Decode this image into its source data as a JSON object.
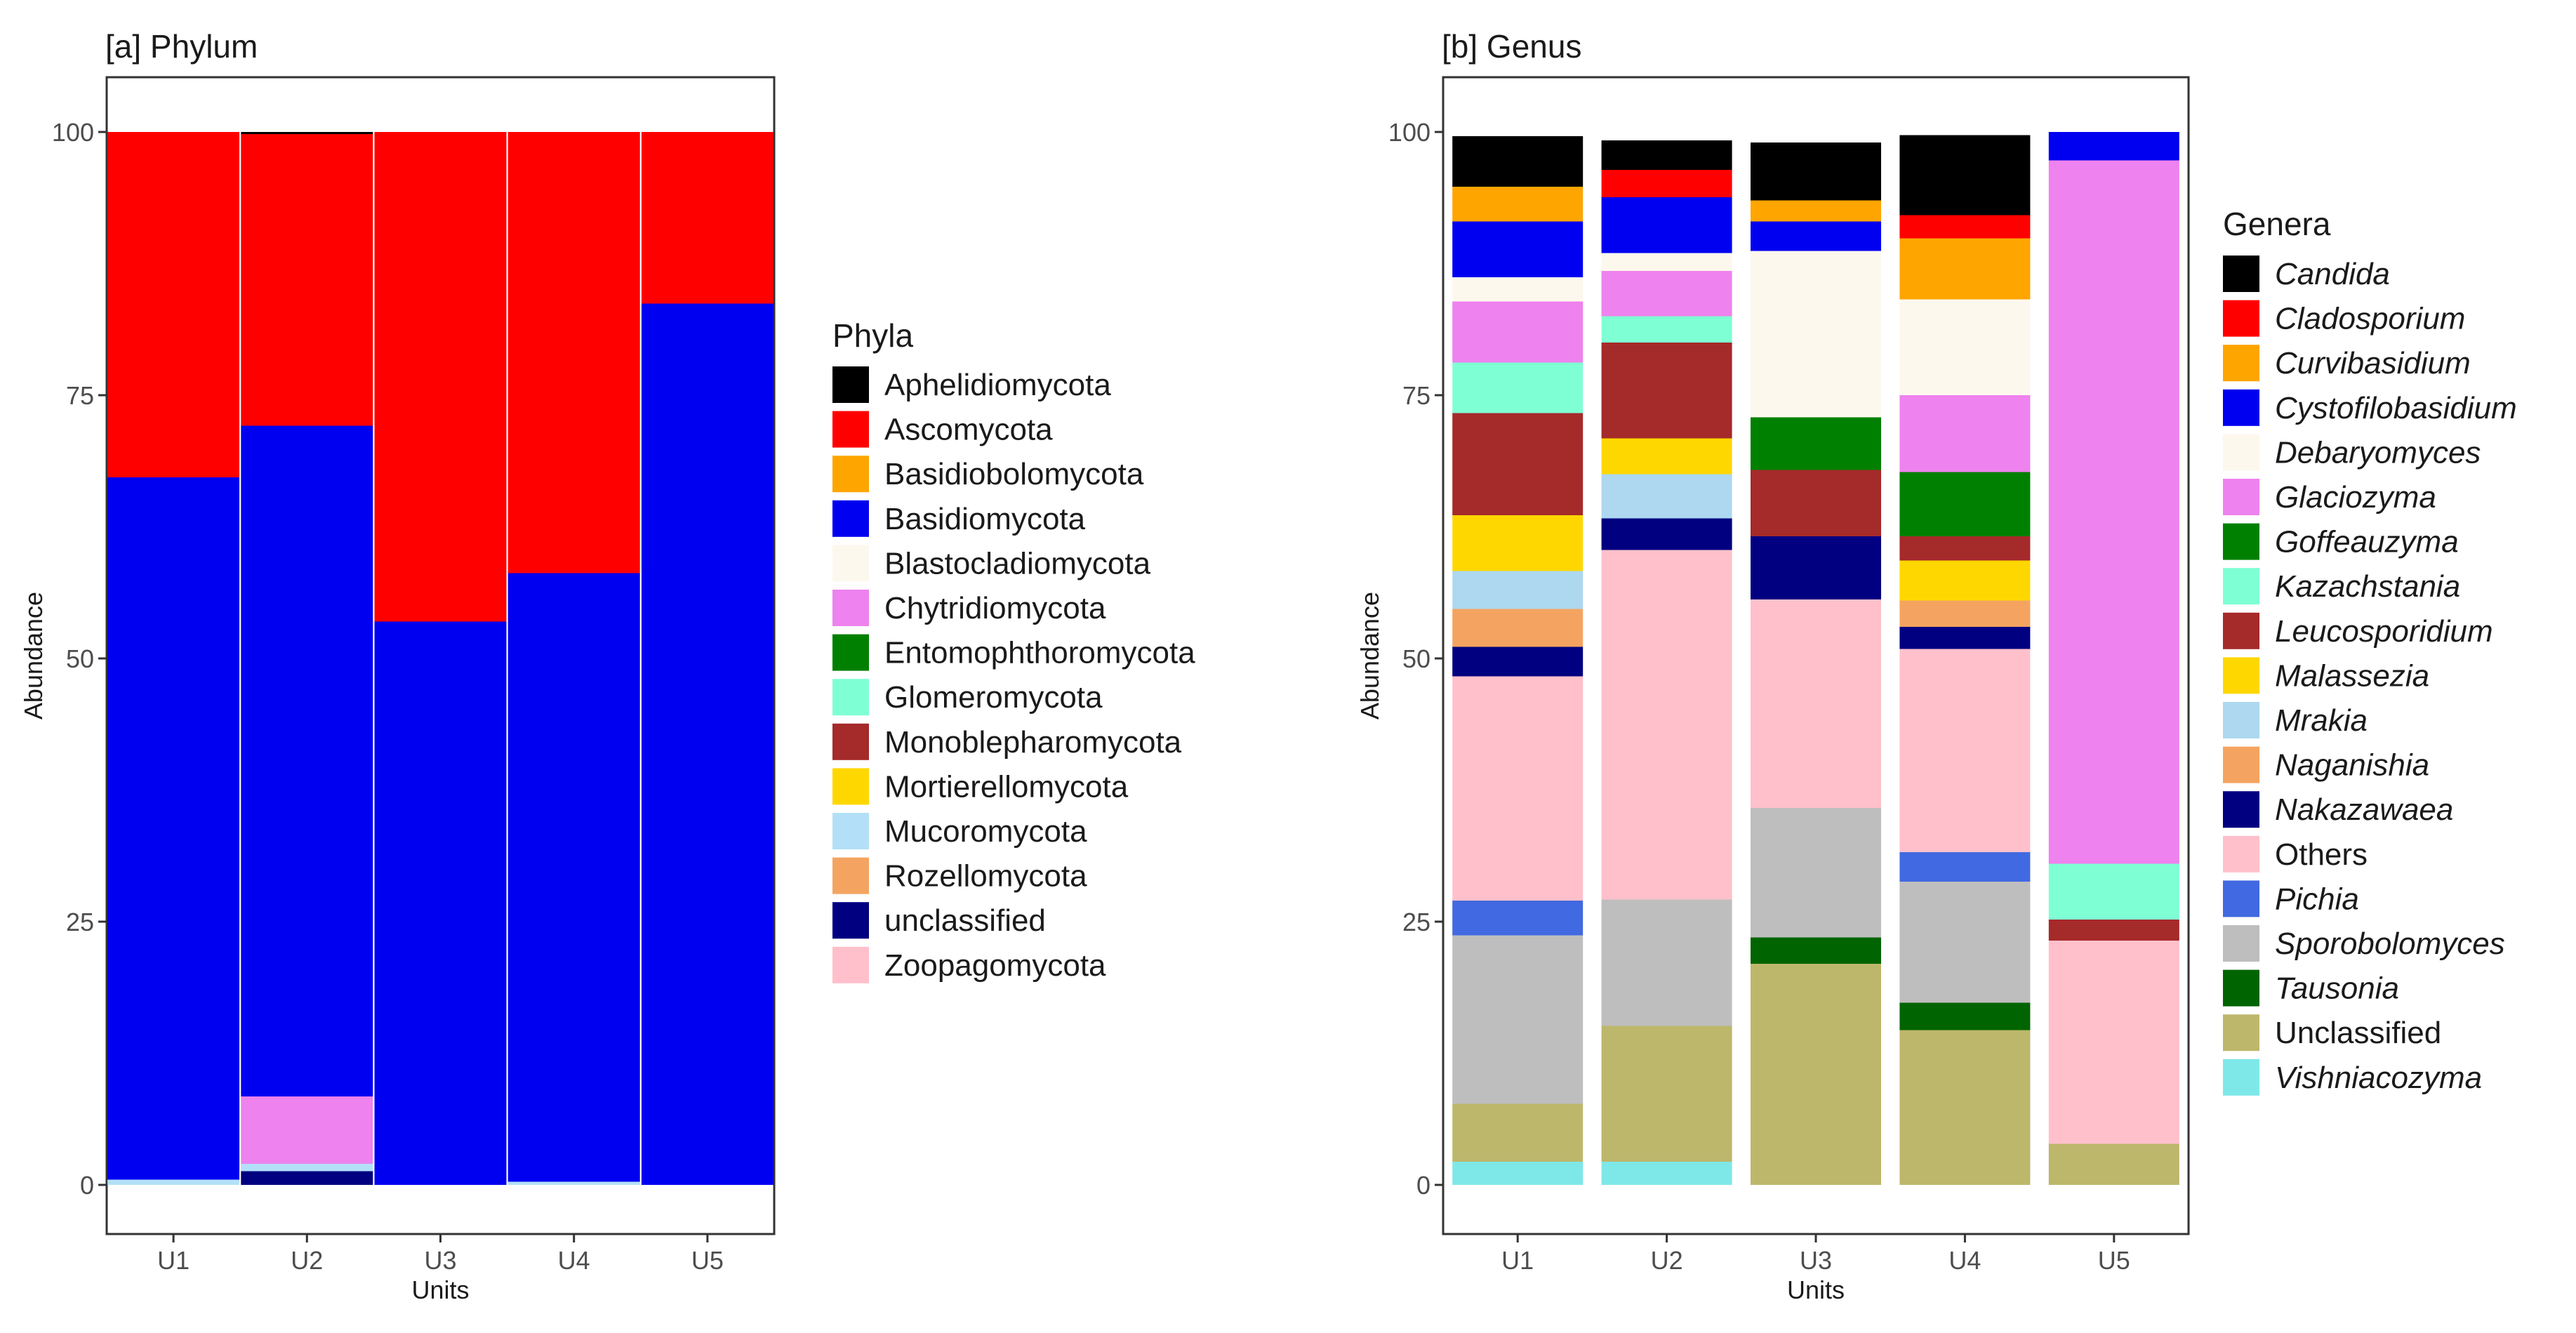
{
  "chart_data": [
    {
      "type": "bar",
      "stacked": true,
      "title": "[a] Phylum",
      "xlabel": "Units",
      "ylabel": "Abundance",
      "ylim": [
        0,
        100
      ],
      "yticks": [
        0,
        25,
        50,
        75,
        100
      ],
      "legend_title": "Phyla",
      "legend_position": "right",
      "categories": [
        "U1",
        "U2",
        "U3",
        "U4",
        "U5"
      ],
      "series": [
        {
          "name": "unclassified",
          "color": "#000080",
          "italic": false,
          "values": [
            0,
            1.3,
            0,
            0,
            0
          ]
        },
        {
          "name": "Mucoromycota",
          "color": "#b3e0f8",
          "italic": false,
          "values": [
            0.5,
            0.7,
            0,
            0.3,
            0
          ]
        },
        {
          "name": "Chytridiomycota",
          "color": "#ee82ee",
          "italic": false,
          "values": [
            0,
            6.4,
            0,
            0,
            0
          ]
        },
        {
          "name": "Basidiomycota",
          "color": "#0000f0",
          "italic": false,
          "values": [
            66.7,
            63.7,
            53.5,
            57.8,
            83.7
          ]
        },
        {
          "name": "Ascomycota",
          "color": "#ff0000",
          "italic": false,
          "values": [
            32.8,
            27.7,
            46.5,
            41.9,
            16.3
          ]
        },
        {
          "name": "Aphelidiomycota",
          "color": "#000000",
          "italic": false,
          "values": [
            0,
            0.2,
            0,
            0,
            0
          ]
        }
      ],
      "legend": [
        {
          "name": "Aphelidiomycota",
          "color": "#000000"
        },
        {
          "name": "Ascomycota",
          "color": "#ff0000"
        },
        {
          "name": "Basidiobolomycota",
          "color": "#ffa500"
        },
        {
          "name": "Basidiomycota",
          "color": "#0000f0"
        },
        {
          "name": "Blastocladiomycota",
          "color": "#fdf8ee"
        },
        {
          "name": "Chytridiomycota",
          "color": "#ee82ee"
        },
        {
          "name": "Entomophthoromycota",
          "color": "#008000"
        },
        {
          "name": "Glomeromycota",
          "color": "#7fffd4"
        },
        {
          "name": "Monoblepharomycota",
          "color": "#a52a2a"
        },
        {
          "name": "Mortierellomycota",
          "color": "#ffd700"
        },
        {
          "name": "Mucoromycota",
          "color": "#b3e0f8"
        },
        {
          "name": "Rozellomycota",
          "color": "#f4a460"
        },
        {
          "name": "unclassified",
          "color": "#000080"
        },
        {
          "name": "Zoopagomycota",
          "color": "#ffc0cb"
        }
      ]
    },
    {
      "type": "bar",
      "stacked": true,
      "title": "[b] Genus",
      "xlabel": "Units",
      "ylabel": "Abundance",
      "ylim": [
        0,
        100
      ],
      "yticks": [
        0,
        25,
        50,
        75,
        100
      ],
      "legend_title": "Genera",
      "legend_position": "right",
      "categories": [
        "U1",
        "U2",
        "U3",
        "U4",
        "U5"
      ],
      "series": [
        {
          "name": "Vishniacozyma",
          "color": "#7ee8e8",
          "values": [
            2.2,
            2.2,
            0,
            0,
            0
          ]
        },
        {
          "name": "Unclassified",
          "color": "#bdb76b",
          "values": [
            5.5,
            12.9,
            21.0,
            14.7,
            3.9
          ]
        },
        {
          "name": "Tausonia",
          "color": "#006400",
          "values": [
            0,
            0,
            2.5,
            2.6,
            0
          ]
        },
        {
          "name": "Sporobolomyces",
          "color": "#bebebe",
          "values": [
            16.0,
            12.0,
            12.3,
            11.5,
            0
          ]
        },
        {
          "name": "Pichia",
          "color": "#4169e1",
          "values": [
            3.3,
            0,
            0,
            2.8,
            0
          ]
        },
        {
          "name": "Others",
          "color": "#ffc0cb",
          "values": [
            21.3,
            33.2,
            19.8,
            19.3,
            19.3
          ]
        },
        {
          "name": "Nakazawaea",
          "color": "#000080",
          "values": [
            2.8,
            3.0,
            6.0,
            2.1,
            0
          ]
        },
        {
          "name": "Naganishia",
          "color": "#f4a460",
          "values": [
            3.6,
            0,
            0,
            2.5,
            0
          ]
        },
        {
          "name": "Mrakia",
          "color": "#add8f0",
          "values": [
            3.6,
            4.2,
            0,
            0,
            0
          ]
        },
        {
          "name": "Malassezia",
          "color": "#ffd700",
          "values": [
            5.3,
            3.4,
            0,
            3.8,
            0
          ]
        },
        {
          "name": "Leucosporidium",
          "color": "#a52a2a",
          "values": [
            9.7,
            9.1,
            6.3,
            2.3,
            2.0
          ]
        },
        {
          "name": "Goffeauzyma",
          "color": "#008000",
          "values": [
            0,
            0,
            5.0,
            6.1,
            0
          ]
        },
        {
          "name": "Kazachstania",
          "color": "#7fffd4",
          "values": [
            4.8,
            2.5,
            0,
            0,
            5.3
          ]
        },
        {
          "name": "Glaciozyma",
          "color": "#ee82ee",
          "values": [
            5.8,
            4.3,
            0,
            7.3,
            66.8
          ]
        },
        {
          "name": "Debaryomyces",
          "color": "#fdf8ee",
          "values": [
            2.3,
            1.7,
            15.8,
            9.1,
            0
          ]
        },
        {
          "name": "Cystofilobasidium",
          "color": "#0000f0",
          "values": [
            5.3,
            5.3,
            2.8,
            0,
            2.7
          ]
        },
        {
          "name": "Curvibasidium",
          "color": "#ffa500",
          "values": [
            3.3,
            0,
            2.0,
            5.8,
            0
          ]
        },
        {
          "name": "Cladosporium",
          "color": "#ff0000",
          "values": [
            0,
            2.6,
            0,
            2.2,
            0
          ]
        },
        {
          "name": "Candida",
          "color": "#000000",
          "values": [
            4.8,
            2.8,
            5.5,
            7.6,
            0
          ]
        }
      ],
      "legend": [
        {
          "name": "Candida",
          "color": "#000000",
          "italic": true
        },
        {
          "name": "Cladosporium",
          "color": "#ff0000",
          "italic": true
        },
        {
          "name": "Curvibasidium",
          "color": "#ffa500",
          "italic": true
        },
        {
          "name": "Cystofilobasidium",
          "color": "#0000f0",
          "italic": true
        },
        {
          "name": "Debaryomyces",
          "color": "#fdf8ee",
          "italic": true
        },
        {
          "name": "Glaciozyma",
          "color": "#ee82ee",
          "italic": true
        },
        {
          "name": "Goffeauzyma",
          "color": "#008000",
          "italic": true
        },
        {
          "name": "Kazachstania",
          "color": "#7fffd4",
          "italic": true
        },
        {
          "name": "Leucosporidium",
          "color": "#a52a2a",
          "italic": true
        },
        {
          "name": "Malassezia",
          "color": "#ffd700",
          "italic": true
        },
        {
          "name": "Mrakia",
          "color": "#add8f0",
          "italic": true
        },
        {
          "name": "Naganishia",
          "color": "#f4a460",
          "italic": true
        },
        {
          "name": "Nakazawaea",
          "color": "#000080",
          "italic": true
        },
        {
          "name": "Others",
          "color": "#ffc0cb",
          "italic": false
        },
        {
          "name": "Pichia",
          "color": "#4169e1",
          "italic": true
        },
        {
          "name": "Sporobolomyces",
          "color": "#bebebe",
          "italic": true
        },
        {
          "name": "Tausonia",
          "color": "#006400",
          "italic": true
        },
        {
          "name": "Unclassified",
          "color": "#bdb76b",
          "italic": false
        },
        {
          "name": "Vishniacozyma",
          "color": "#7ee8e8",
          "italic": true
        }
      ]
    }
  ]
}
